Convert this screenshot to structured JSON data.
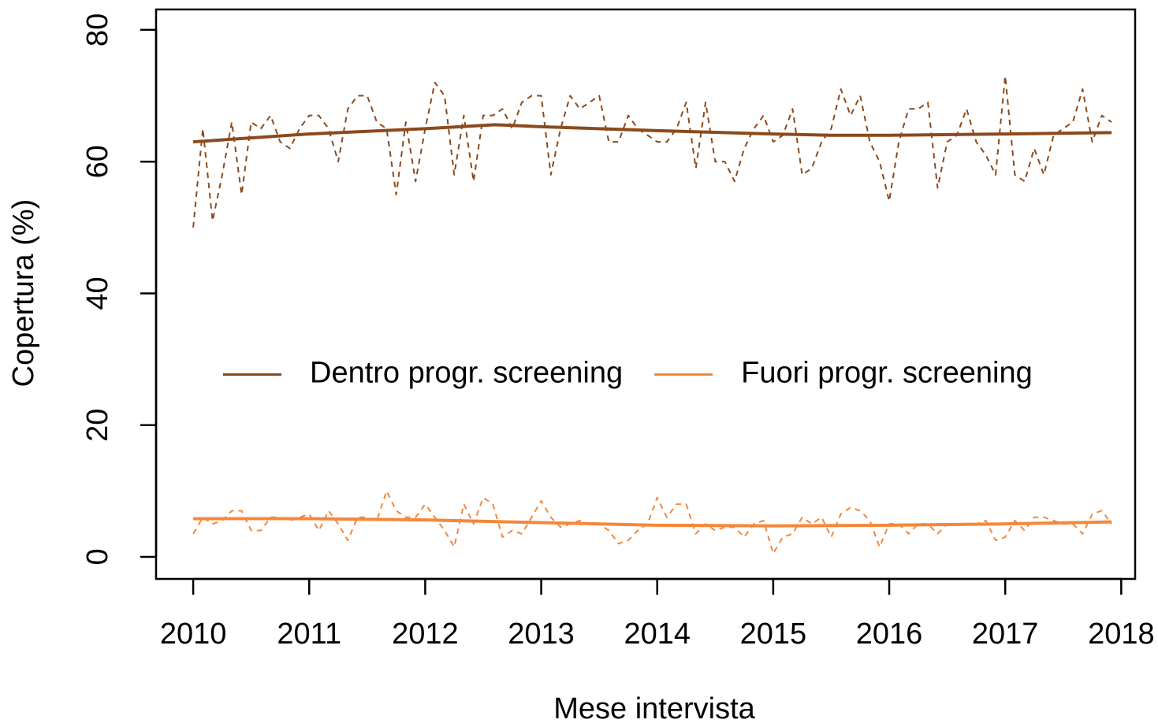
{
  "chart_data": {
    "type": "line",
    "xlabel": "Mese intervista",
    "ylabel": "Copertura (%)",
    "xlim": [
      2009.68,
      2018.12
    ],
    "ylim": [
      -3.35,
      83.1
    ],
    "xticks": [
      2010,
      2011,
      2012,
      2013,
      2014,
      2015,
      2016,
      2017,
      2018
    ],
    "yticks": [
      0,
      20,
      40,
      60,
      80
    ],
    "legend": "center",
    "x": [
      2010,
      2010.083,
      2010.167,
      2010.25,
      2010.333,
      2010.417,
      2010.5,
      2010.583,
      2010.667,
      2010.75,
      2010.833,
      2010.917,
      2011,
      2011.083,
      2011.167,
      2011.25,
      2011.333,
      2011.417,
      2011.5,
      2011.583,
      2011.667,
      2011.75,
      2011.833,
      2011.917,
      2012,
      2012.083,
      2012.167,
      2012.25,
      2012.333,
      2012.417,
      2012.5,
      2012.583,
      2012.667,
      2012.75,
      2012.833,
      2012.917,
      2013,
      2013.083,
      2013.167,
      2013.25,
      2013.333,
      2013.417,
      2013.5,
      2013.583,
      2013.667,
      2013.75,
      2013.833,
      2013.917,
      2014,
      2014.083,
      2014.167,
      2014.25,
      2014.333,
      2014.417,
      2014.5,
      2014.583,
      2014.667,
      2014.75,
      2014.833,
      2014.917,
      2015,
      2015.083,
      2015.167,
      2015.25,
      2015.333,
      2015.417,
      2015.5,
      2015.583,
      2015.667,
      2015.75,
      2015.833,
      2015.917,
      2016,
      2016.083,
      2016.167,
      2016.25,
      2016.333,
      2016.417,
      2016.5,
      2016.583,
      2016.667,
      2016.75,
      2016.833,
      2016.917,
      2017,
      2017.083,
      2017.167,
      2017.25,
      2017.333,
      2017.417,
      2017.5,
      2017.583,
      2017.667,
      2017.75,
      2017.833,
      2017.917
    ],
    "series": [
      {
        "name": "Dentro progr. screening",
        "color": "#8b4a1c",
        "width": 4,
        "x": [
          2010,
          2011,
          2012,
          2012.6,
          2013,
          2014,
          2015,
          2015.5,
          2016,
          2017,
          2017.917
        ],
        "values": [
          63,
          64.2,
          65,
          65.6,
          65.3,
          64.7,
          64.2,
          64,
          64,
          64.2,
          64.4
        ]
      },
      {
        "name": "Fuori progr. screening",
        "color": "#f5873a",
        "width": 4,
        "x": [
          2010,
          2011,
          2012,
          2013,
          2014,
          2015,
          2016,
          2017,
          2017.917
        ],
        "values": [
          5.8,
          5.8,
          5.6,
          5.2,
          4.8,
          4.7,
          4.8,
          5,
          5.3
        ]
      },
      {
        "color": "#8b4a1c",
        "dashed": true,
        "width": 2,
        "values": [
          50,
          65,
          51,
          58,
          66,
          55,
          66,
          65,
          67,
          63,
          62,
          65,
          67,
          67,
          65,
          60,
          68,
          70,
          70,
          66,
          65,
          55,
          66,
          57,
          65,
          72,
          70,
          58,
          67,
          57,
          67,
          67,
          68,
          65,
          69,
          70,
          70,
          58,
          65,
          70,
          68,
          69,
          70,
          63,
          63,
          67,
          65,
          64,
          63,
          63,
          65,
          69,
          59,
          69,
          60,
          60,
          57,
          62,
          65,
          67,
          63,
          64,
          68,
          58,
          59,
          63,
          65,
          71,
          67,
          70,
          63,
          60,
          54,
          63,
          68,
          68,
          69,
          56,
          63,
          64,
          68,
          63,
          61,
          58,
          73,
          58,
          57,
          62,
          58,
          64,
          65,
          66,
          71,
          63,
          67,
          66
        ]
      },
      {
        "color": "#f5873a",
        "dashed": true,
        "width": 2,
        "values": [
          3.5,
          6,
          5,
          5.5,
          7,
          7,
          4,
          4,
          6,
          6,
          5.5,
          6,
          6.5,
          4,
          7,
          5,
          2.5,
          6,
          6,
          5.5,
          10,
          7,
          6,
          6,
          8,
          6,
          4,
          1.5,
          8,
          5,
          9,
          8,
          3,
          4,
          3.5,
          6,
          8.5,
          6,
          4.5,
          5,
          5.5,
          5,
          5,
          4,
          2,
          2.5,
          4,
          5,
          9,
          6,
          8,
          8,
          3.5,
          5,
          4,
          4.5,
          4.5,
          3,
          5,
          5.5,
          0.5,
          3,
          3.5,
          6,
          5,
          6,
          3,
          6.5,
          7.5,
          7,
          5.5,
          1.5,
          5,
          5,
          3.5,
          5,
          5,
          3.5,
          5,
          5,
          5,
          5,
          5.5,
          2.5,
          3,
          5.5,
          4,
          6,
          6,
          5.5,
          5,
          5,
          3.5,
          6.5,
          7,
          5
        ]
      }
    ]
  }
}
